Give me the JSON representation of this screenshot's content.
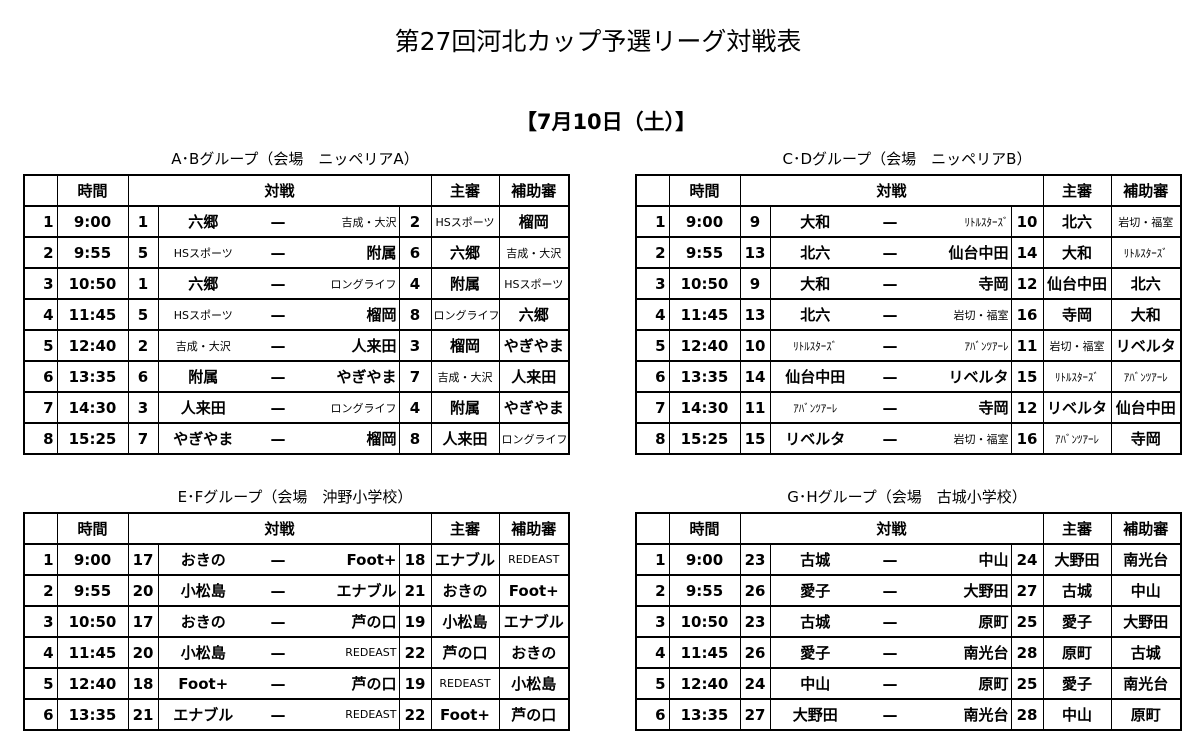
{
  "title": "第27回河北カップ予選リーグ対戦表",
  "date": "【7月10日（土）】",
  "headers": {
    "time": "時間",
    "match": "対戦",
    "referee": "主審",
    "assistant": "補助審"
  },
  "dash": "—",
  "groups": [
    {
      "caption": "A･Bグループ（会場　ニッペリアA）",
      "rows": [
        [
          "1",
          "9:00",
          "1",
          "六郷",
          "吉成・大沢",
          "2",
          "HSスポーツ",
          "榴岡"
        ],
        [
          "2",
          "9:55",
          "5",
          "HSスポーツ",
          "附属",
          "6",
          "六郷",
          "吉成・大沢"
        ],
        [
          "3",
          "10:50",
          "1",
          "六郷",
          "ロングライフ",
          "4",
          "附属",
          "HSスポーツ"
        ],
        [
          "4",
          "11:45",
          "5",
          "HSスポーツ",
          "榴岡",
          "8",
          "ロングライフ",
          "六郷"
        ],
        [
          "5",
          "12:40",
          "2",
          "吉成・大沢",
          "人来田",
          "3",
          "榴岡",
          "やぎやま"
        ],
        [
          "6",
          "13:35",
          "6",
          "附属",
          "やぎやま",
          "7",
          "吉成・大沢",
          "人来田"
        ],
        [
          "7",
          "14:30",
          "3",
          "人来田",
          "ロングライフ",
          "4",
          "附属",
          "やぎやま"
        ],
        [
          "8",
          "15:25",
          "7",
          "やぎやま",
          "榴岡",
          "8",
          "人来田",
          "ロングライフ"
        ]
      ]
    },
    {
      "caption": "C･Dグループ（会場　ニッペリアB）",
      "rows": [
        [
          "1",
          "9:00",
          "9",
          "大和",
          "ﾘﾄﾙｽﾀｰｽﾞ",
          "10",
          "北六",
          "岩切・福室"
        ],
        [
          "2",
          "9:55",
          "13",
          "北六",
          "仙台中田",
          "14",
          "大和",
          "ﾘﾄﾙｽﾀｰｽﾞ"
        ],
        [
          "3",
          "10:50",
          "9",
          "大和",
          "寺岡",
          "12",
          "仙台中田",
          "北六"
        ],
        [
          "4",
          "11:45",
          "13",
          "北六",
          "岩切・福室",
          "16",
          "寺岡",
          "大和"
        ],
        [
          "5",
          "12:40",
          "10",
          "ﾘﾄﾙｽﾀｰｽﾞ",
          "ｱﾊﾞﾝﾂｱｰﾚ",
          "11",
          "岩切・福室",
          "リベルタ"
        ],
        [
          "6",
          "13:35",
          "14",
          "仙台中田",
          "リベルタ",
          "15",
          "ﾘﾄﾙｽﾀｰｽﾞ",
          "ｱﾊﾞﾝﾂｱｰﾚ"
        ],
        [
          "7",
          "14:30",
          "11",
          "ｱﾊﾞﾝﾂｱｰﾚ",
          "寺岡",
          "12",
          "リベルタ",
          "仙台中田"
        ],
        [
          "8",
          "15:25",
          "15",
          "リベルタ",
          "岩切・福室",
          "16",
          "ｱﾊﾞﾝﾂｱｰﾚ",
          "寺岡"
        ]
      ]
    },
    {
      "caption": "E･Fグループ（会場　沖野小学校）",
      "rows": [
        [
          "1",
          "9:00",
          "17",
          "おきの",
          "Foot+",
          "18",
          "エナブル",
          "REDEAST"
        ],
        [
          "2",
          "9:55",
          "20",
          "小松島",
          "エナブル",
          "21",
          "おきの",
          "Foot+"
        ],
        [
          "3",
          "10:50",
          "17",
          "おきの",
          "芦の口",
          "19",
          "小松島",
          "エナブル"
        ],
        [
          "4",
          "11:45",
          "20",
          "小松島",
          "REDEAST",
          "22",
          "芦の口",
          "おきの"
        ],
        [
          "5",
          "12:40",
          "18",
          "Foot+",
          "芦の口",
          "19",
          "REDEAST",
          "小松島"
        ],
        [
          "6",
          "13:35",
          "21",
          "エナブル",
          "REDEAST",
          "22",
          "Foot+",
          "芦の口"
        ]
      ]
    },
    {
      "caption": "G･Hグループ（会場　古城小学校）",
      "rows": [
        [
          "1",
          "9:00",
          "23",
          "古城",
          "中山",
          "24",
          "大野田",
          "南光台"
        ],
        [
          "2",
          "9:55",
          "26",
          "愛子",
          "大野田",
          "27",
          "古城",
          "中山"
        ],
        [
          "3",
          "10:50",
          "23",
          "古城",
          "原町",
          "25",
          "愛子",
          "大野田"
        ],
        [
          "4",
          "11:45",
          "26",
          "愛子",
          "南光台",
          "28",
          "原町",
          "古城"
        ],
        [
          "5",
          "12:40",
          "24",
          "中山",
          "原町",
          "25",
          "愛子",
          "南光台"
        ],
        [
          "6",
          "13:35",
          "27",
          "大野田",
          "南光台",
          "28",
          "中山",
          "原町"
        ]
      ]
    }
  ]
}
